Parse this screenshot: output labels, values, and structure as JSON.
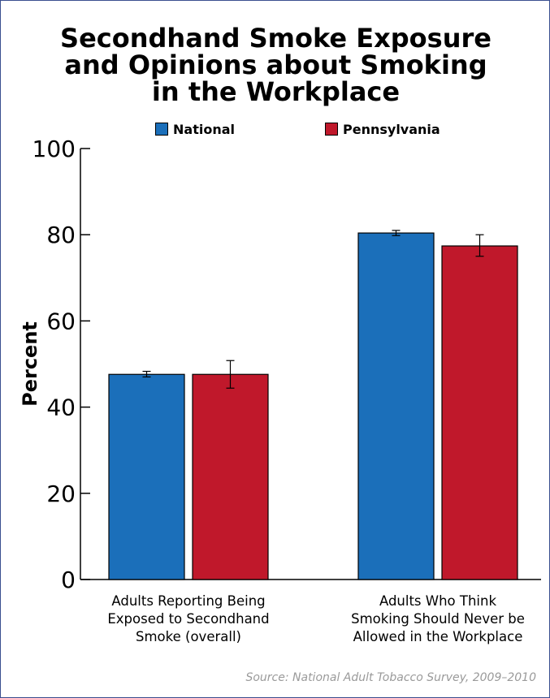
{
  "title_lines": [
    "Secondhand Smoke Exposure",
    "and Opinions about Smoking",
    "in the Workplace"
  ],
  "source": "Source: National Adult Tobacco Survey, 2009–2010",
  "chart_data": {
    "type": "bar",
    "title": "Secondhand Smoke Exposure and Opinions about Smoking in the Workplace",
    "ylabel": "Percent",
    "xlabel": "",
    "ylim": [
      0,
      100
    ],
    "yticks": [
      0,
      20,
      40,
      60,
      80,
      100
    ],
    "legend_position": "top",
    "grid": false,
    "categories": [
      [
        "Adults Reporting Being",
        "Exposed to Secondhand",
        "Smoke (overall)"
      ],
      [
        "Adults Who Think",
        "Smoking Should Never be",
        "Allowed in the Workplace"
      ]
    ],
    "series": [
      {
        "name": "National",
        "color": "#1b6fba",
        "values": [
          47.6,
          80.4
        ],
        "error_low": [
          47.0,
          79.8
        ],
        "error_high": [
          48.3,
          81.0
        ]
      },
      {
        "name": "Pennsylvania",
        "color": "#c0182b",
        "values": [
          47.6,
          77.4
        ],
        "error_low": [
          44.4,
          75.0
        ],
        "error_high": [
          50.8,
          80.0
        ]
      }
    ]
  }
}
